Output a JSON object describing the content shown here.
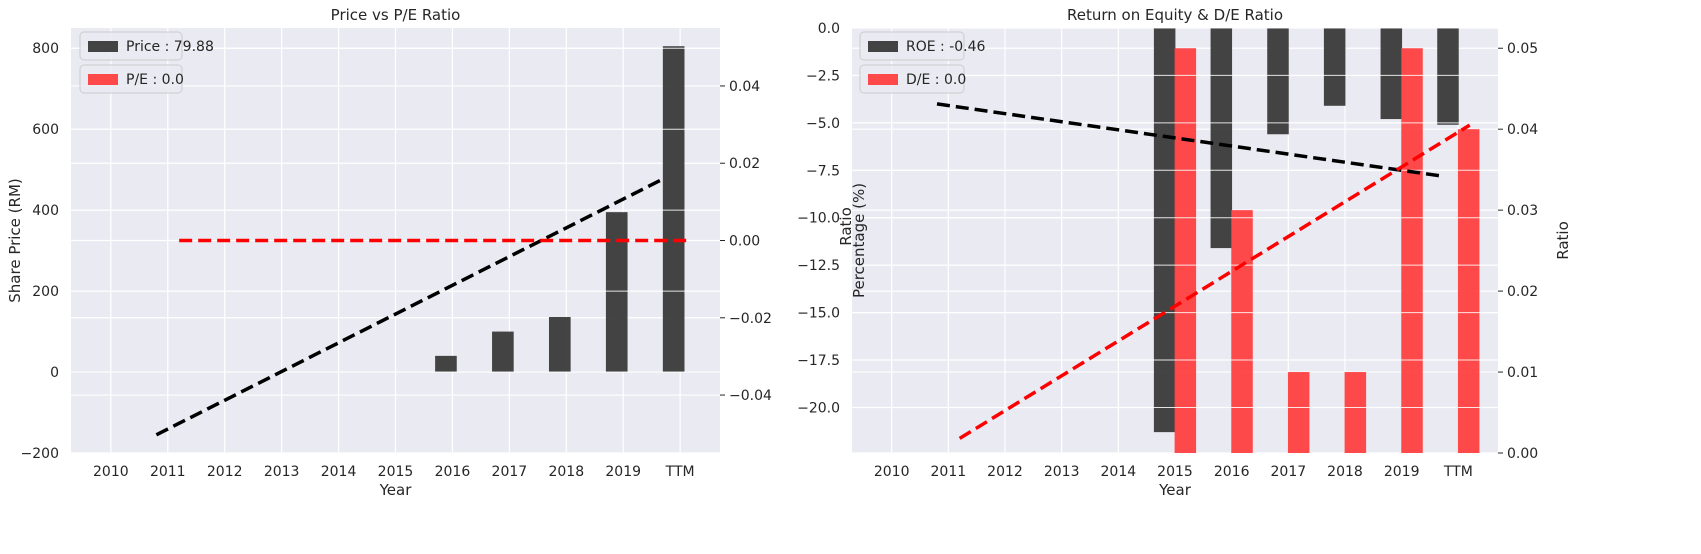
{
  "colors": {
    "plot_bg": "#eaeaf2",
    "grid": "#ffffff",
    "bar_dark": "#3a3a3a",
    "bar_red": "#ff4040",
    "trend_dark": "#000000",
    "trend_red": "#ff0000"
  },
  "chart_data": [
    {
      "type": "bar",
      "title": "Price vs P/E Ratio",
      "xlabel": "Year",
      "ylabel": "Share Price (RM)",
      "y2label": "",
      "categories": [
        "2010",
        "2011",
        "2012",
        "2013",
        "2014",
        "2015",
        "2016",
        "2017",
        "2018",
        "2019",
        "TTM"
      ],
      "ylim": [
        -200,
        850
      ],
      "y_ticks": [
        -200,
        0,
        200,
        400,
        600,
        800
      ],
      "y2lim": [
        -0.055,
        0.055
      ],
      "y2_ticks": [
        -0.04,
        -0.02,
        0.0,
        0.02,
        0.04
      ],
      "y2_tick_labels": [
        "−0.04",
        "−0.02",
        "0.00",
        "0.02",
        "0.04"
      ],
      "legend_position": "top-left",
      "legend": [
        {
          "label": "Price : 79.88",
          "color": "bar_dark"
        },
        {
          "label": "P/E : 0.0",
          "color": "bar_red"
        }
      ],
      "series": [
        {
          "name": "Price : 79.88",
          "kind": "bar",
          "axis": "left",
          "color": "bar_dark",
          "x": [
            "2016",
            "2017",
            "2018",
            "2019",
            "TTM"
          ],
          "values": [
            40,
            100,
            136,
            395,
            805
          ]
        },
        {
          "name": "P/E : 0.0",
          "kind": "bar",
          "axis": "right",
          "color": "bar_red",
          "x": [
            "2016",
            "2017",
            "2018",
            "2019",
            "TTM"
          ],
          "values": [
            0,
            0,
            0,
            0,
            0
          ]
        }
      ],
      "trendlines": [
        {
          "axis": "left",
          "color": "trend_dark",
          "from": [
            1.8,
            -155
          ],
          "to": [
            10.7,
            477
          ]
        },
        {
          "axis": "right",
          "color": "trend_red",
          "from": [
            2.2,
            0.0
          ],
          "to": [
            11.2,
            0.0
          ]
        }
      ]
    },
    {
      "type": "bar",
      "title": "Return on Equity & D/E Ratio",
      "xlabel": "Year",
      "ylabel": "Percentage (%)",
      "ylabel_overlap": "Ratio",
      "y2label": "Ratio",
      "categories": [
        "2010",
        "2011",
        "2012",
        "2013",
        "2014",
        "2015",
        "2016",
        "2017",
        "2018",
        "2019",
        "TTM"
      ],
      "ylim": [
        -22.4,
        0.0
      ],
      "y_ticks": [
        -20.0,
        -17.5,
        -15.0,
        -12.5,
        -10.0,
        -7.5,
        -5.0,
        -2.5,
        0.0
      ],
      "y_tick_labels": [
        "−20.0",
        "−17.5",
        "−15.0",
        "−12.5",
        "−10.0",
        "−7.5",
        "−5.0",
        "−2.5",
        "0.0"
      ],
      "y2lim": [
        0.0,
        0.0525
      ],
      "y2_ticks": [
        0.0,
        0.01,
        0.02,
        0.03,
        0.04,
        0.05
      ],
      "y2_tick_labels": [
        "0.00",
        "0.01",
        "0.02",
        "0.03",
        "0.04",
        "0.05"
      ],
      "legend_position": "top-left",
      "legend": [
        {
          "label": "ROE : -0.46",
          "color": "bar_dark"
        },
        {
          "label": "D/E : 0.0",
          "color": "bar_red"
        }
      ],
      "series": [
        {
          "name": "ROE : -0.46",
          "kind": "bar",
          "axis": "left",
          "color": "bar_dark",
          "x": [
            "2015",
            "2016",
            "2017",
            "2018",
            "2019",
            "TTM"
          ],
          "values": [
            -21.3,
            -11.6,
            -5.6,
            -4.1,
            -4.8,
            -5.1
          ]
        },
        {
          "name": "D/E : 0.0",
          "kind": "bar",
          "axis": "right",
          "color": "bar_red",
          "x": [
            "2015",
            "2016",
            "2017",
            "2018",
            "2019",
            "TTM"
          ],
          "values": [
            0.05,
            0.03,
            0.01,
            0.01,
            0.05,
            0.04
          ]
        }
      ],
      "trendlines": [
        {
          "axis": "left",
          "color": "trend_dark",
          "from": [
            1.8,
            -4.0
          ],
          "to": [
            10.7,
            -7.8
          ]
        },
        {
          "axis": "right",
          "color": "trend_red",
          "from": [
            2.2,
            0.0018
          ],
          "to": [
            11.2,
            0.0405
          ]
        }
      ]
    }
  ]
}
